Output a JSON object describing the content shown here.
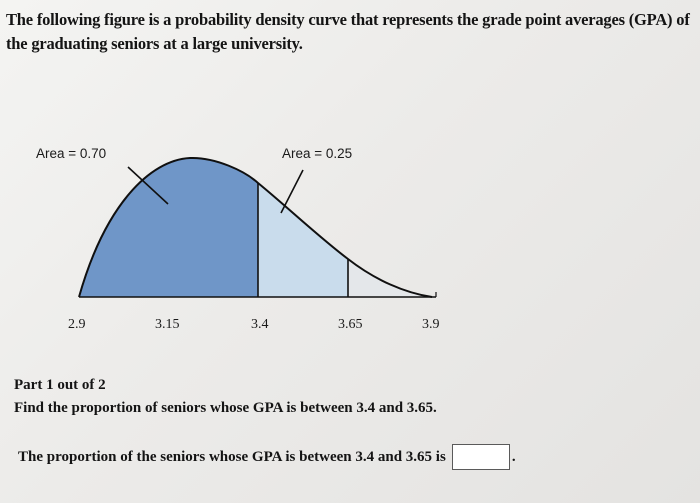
{
  "question": {
    "text": "The following figure is a probability density curve that represents the grade point averages (GPA) of the graduating seniors at a large university."
  },
  "figure": {
    "area_labels": [
      "Area = 0.70",
      "Area = 0.25"
    ],
    "tick_labels": [
      "2.9",
      "3.15",
      "3.4",
      "3.65",
      "3.9"
    ],
    "colors": {
      "left_area": "#6f96c8",
      "middle_area": "#c9dcec",
      "right_area": "#e4e7ea",
      "curve": "#101010"
    }
  },
  "part": {
    "header": "Part 1 out of 2",
    "instruction": "Find the proportion of seniors whose GPA is between 3.4 and 3.65.",
    "answer_prefix": "The proportion of the seniors whose GPA is between 3.4 and 3.65 is",
    "answer_value": "",
    "answer_suffix": "."
  }
}
